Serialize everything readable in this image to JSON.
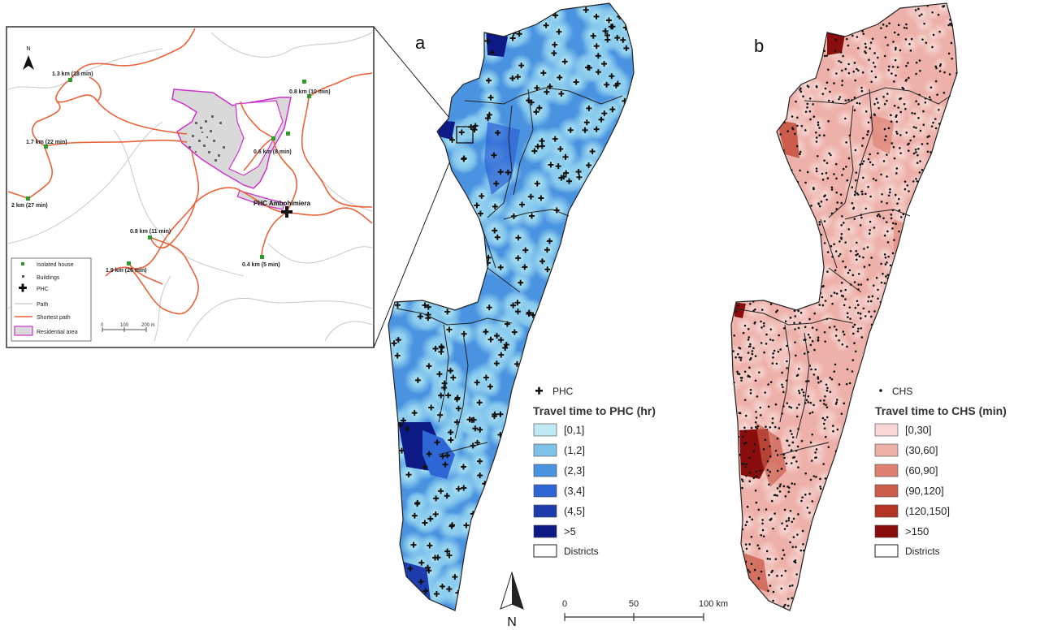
{
  "panels": {
    "a_letter": "a",
    "b_letter": "b"
  },
  "inset": {
    "north": "N",
    "place_label": "PHC Ambohimiera",
    "distance_labels": [
      "1.3 km (18 min)",
      "0.8 km (10 min)",
      "1.7 km (22 min)",
      "0.6 km (8 min)",
      "2 km (27 min)",
      "0.8 km (11 min)",
      "1.9 km (26 min)",
      "0.4 km (5 min)"
    ],
    "legend": {
      "isolated_house": "Isolated house",
      "buildings": "Buildings",
      "phc": "PHC",
      "path": "Path",
      "shortest_path": "Shortest path",
      "residential_area": "Residential area"
    },
    "scalebar": [
      "0",
      "100",
      "200 m"
    ]
  },
  "map_a": {
    "point_label": "PHC",
    "legend_title": "Travel time to PHC (hr)",
    "classes": [
      {
        "label": "[0,1]",
        "color": "#bfeaf3"
      },
      {
        "label": "(1,2]",
        "color": "#7fc2ea"
      },
      {
        "label": "(2,3]",
        "color": "#4a93e0"
      },
      {
        "label": "(3,4]",
        "color": "#2e66d6"
      },
      {
        "label": "(4,5]",
        "color": "#1f3cae"
      },
      {
        "label": ">5",
        "color": "#0d1a86"
      }
    ],
    "districts_label": "Districts"
  },
  "map_b": {
    "point_label": "CHS",
    "legend_title": "Travel time to CHS (min)",
    "classes": [
      {
        "label": "[0,30]",
        "color": "#f8d7d6"
      },
      {
        "label": "(30,60]",
        "color": "#eeb1aa"
      },
      {
        "label": "(60,90]",
        "color": "#dd8273"
      },
      {
        "label": "(90,120]",
        "color": "#cc5d4c"
      },
      {
        "label": "(120,150]",
        "color": "#b53322"
      },
      {
        "label": ">150",
        "color": "#8a0d0d"
      }
    ],
    "districts_label": "Districts"
  },
  "north_arrow": "N",
  "scalebar": [
    "0",
    "50",
    "100 km"
  ]
}
